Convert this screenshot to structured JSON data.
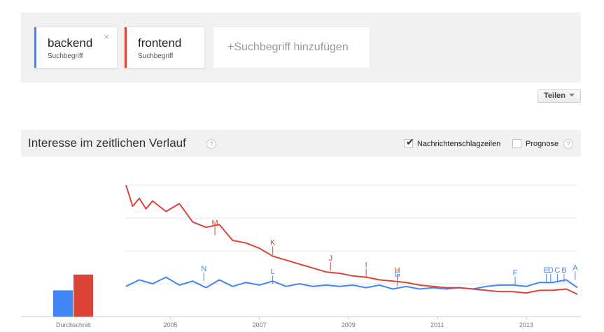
{
  "terms": [
    {
      "term": "backend",
      "subtitle": "Suchbegriff",
      "color": "#4285f4",
      "close_icon": "×"
    },
    {
      "term": "frontend",
      "subtitle": "Suchbegriff",
      "color": "#db4437"
    }
  ],
  "add_term": {
    "label": "+Suchbegriff hinzufügen"
  },
  "share": {
    "label": "Teilen"
  },
  "section": {
    "title": "Interesse im zeitlichen Verlauf",
    "help_icon": "?",
    "news_label": "Nachrichtenschlagzeilen",
    "news_checked": true,
    "forecast_label": "Prognose",
    "forecast_checked": false
  },
  "chart_data": {
    "type": "line",
    "average_bar": {
      "label": "Durchschnitt",
      "values": [
        {
          "series": "backend",
          "value": 20
        },
        {
          "series": "frontend",
          "value": 32
        }
      ]
    },
    "x_ticks": [
      "2005",
      "2007",
      "2009",
      "2011",
      "2013"
    ],
    "ylim": [
      0,
      100
    ],
    "grid": true,
    "series": [
      {
        "name": "backend",
        "color": "#4285f4",
        "x": [
          2004.0,
          2004.3,
          2004.6,
          2004.9,
          2005.2,
          2005.5,
          2005.8,
          2006.1,
          2006.4,
          2006.7,
          2007.0,
          2007.3,
          2007.6,
          2007.9,
          2008.2,
          2008.5,
          2008.8,
          2009.1,
          2009.4,
          2009.7,
          2010.0,
          2010.3,
          2010.6,
          2010.9,
          2011.2,
          2011.5,
          2011.8,
          2012.1,
          2012.4,
          2012.7,
          2013.0,
          2013.3,
          2013.6,
          2013.9,
          2014.15
        ],
        "y": [
          23,
          28,
          25,
          30,
          24,
          27,
          22,
          28,
          23,
          26,
          24,
          27,
          23,
          25,
          23,
          24,
          23,
          24,
          22,
          24,
          21,
          23,
          21,
          22,
          21,
          22,
          21,
          23,
          24,
          24,
          23,
          26,
          26,
          28,
          22
        ]
      },
      {
        "name": "frontend",
        "color": "#db4437",
        "x": [
          2004.0,
          2004.15,
          2004.3,
          2004.45,
          2004.6,
          2004.9,
          2005.2,
          2005.5,
          2005.8,
          2006.1,
          2006.4,
          2006.7,
          2007.0,
          2007.3,
          2007.6,
          2007.9,
          2008.2,
          2008.5,
          2008.8,
          2009.1,
          2009.4,
          2009.7,
          2010.0,
          2010.3,
          2010.6,
          2010.9,
          2011.2,
          2011.5,
          2011.8,
          2012.1,
          2012.4,
          2012.7,
          2013.0,
          2013.3,
          2013.6,
          2013.9,
          2014.15
        ],
        "y": [
          100,
          84,
          90,
          82,
          88,
          80,
          86,
          72,
          68,
          70,
          58,
          56,
          52,
          46,
          43,
          40,
          37,
          34,
          33,
          31,
          30,
          28,
          27,
          26,
          24,
          23,
          22,
          22,
          21,
          20,
          19,
          19,
          18,
          20,
          20,
          21,
          17
        ]
      }
    ],
    "annotations": [
      {
        "letter": "M",
        "series": "frontend",
        "x": 2006.0,
        "y": 62
      },
      {
        "letter": "K",
        "series": "frontend",
        "x": 2007.3,
        "y": 47
      },
      {
        "letter": "J",
        "series": "frontend",
        "x": 2008.6,
        "y": 35
      },
      {
        "letter": "I",
        "series": "frontend",
        "x": 2009.4,
        "y": 30
      },
      {
        "letter": "H",
        "series": "frontend",
        "x": 2010.1,
        "y": 26
      },
      {
        "letter": "N",
        "series": "backend",
        "x": 2005.75,
        "y": 27
      },
      {
        "letter": "L",
        "series": "backend",
        "x": 2007.3,
        "y": 25
      },
      {
        "letter": "G",
        "series": "backend",
        "x": 2010.1,
        "y": 23
      },
      {
        "letter": "F",
        "series": "backend",
        "x": 2012.75,
        "y": 24
      },
      {
        "letter": "E",
        "series": "backend",
        "x": 2013.45,
        "y": 26
      },
      {
        "letter": "D",
        "series": "backend",
        "x": 2013.55,
        "y": 26
      },
      {
        "letter": "C",
        "series": "backend",
        "x": 2013.7,
        "y": 26
      },
      {
        "letter": "B",
        "series": "backend",
        "x": 2013.85,
        "y": 26
      },
      {
        "letter": "A",
        "series": "backend",
        "x": 2014.1,
        "y": 28
      }
    ]
  }
}
